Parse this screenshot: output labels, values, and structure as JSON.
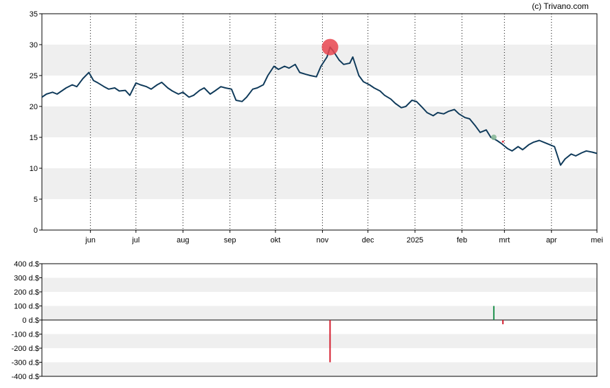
{
  "credit": "(c) Trivano.com",
  "colors": {
    "price_line": "#0f3a5a",
    "band": "#efefef",
    "positive_bar": "#1a8f4a",
    "negative_bar": "#d41c2d",
    "big_marker": "#e8454f",
    "small_marker": "#88b898",
    "tiny_marker": "#d41c2d"
  },
  "chart_data": [
    {
      "type": "line",
      "name": "price",
      "ylim": [
        0,
        35
      ],
      "y_ticks": [
        "0",
        "5",
        "10",
        "15",
        "20",
        "25",
        "30",
        "35"
      ],
      "x_range": [
        "2024-04-30",
        "2025-05-01"
      ],
      "month_ticks": [
        {
          "date": "2024-06-01",
          "label": "jun"
        },
        {
          "date": "2024-07-01",
          "label": "jul"
        },
        {
          "date": "2024-08-01",
          "label": "aug"
        },
        {
          "date": "2024-09-01",
          "label": "sep"
        },
        {
          "date": "2024-10-01",
          "label": "okt"
        },
        {
          "date": "2024-11-01",
          "label": "nov"
        },
        {
          "date": "2024-12-01",
          "label": "dec"
        },
        {
          "date": "2025-01-01",
          "label": "2025"
        },
        {
          "date": "2025-02-01",
          "label": "feb"
        },
        {
          "date": "2025-03-01",
          "label": "mrt"
        },
        {
          "date": "2025-04-01",
          "label": "apr"
        },
        {
          "date": "2025-05-01",
          "label": "mei"
        }
      ],
      "grid": "alternating horizontal bands, dotted vertical month lines",
      "points": [
        [
          "2024-04-30",
          21.5
        ],
        [
          "2024-05-03",
          22.0
        ],
        [
          "2024-05-07",
          22.3
        ],
        [
          "2024-05-10",
          22.0
        ],
        [
          "2024-05-13",
          22.5
        ],
        [
          "2024-05-16",
          23.0
        ],
        [
          "2024-05-20",
          23.5
        ],
        [
          "2024-05-23",
          23.2
        ],
        [
          "2024-05-27",
          24.5
        ],
        [
          "2024-05-31",
          25.5
        ],
        [
          "2024-06-03",
          24.2
        ],
        [
          "2024-06-06",
          23.8
        ],
        [
          "2024-06-10",
          23.2
        ],
        [
          "2024-06-13",
          22.8
        ],
        [
          "2024-06-17",
          23.0
        ],
        [
          "2024-06-20",
          22.5
        ],
        [
          "2024-06-24",
          22.6
        ],
        [
          "2024-06-27",
          21.8
        ],
        [
          "2024-07-01",
          23.8
        ],
        [
          "2024-07-04",
          23.5
        ],
        [
          "2024-07-08",
          23.2
        ],
        [
          "2024-07-11",
          22.8
        ],
        [
          "2024-07-15",
          23.5
        ],
        [
          "2024-07-18",
          23.9
        ],
        [
          "2024-07-22",
          23.0
        ],
        [
          "2024-07-25",
          22.5
        ],
        [
          "2024-07-29",
          22.0
        ],
        [
          "2024-08-01",
          22.3
        ],
        [
          "2024-08-05",
          21.5
        ],
        [
          "2024-08-08",
          21.8
        ],
        [
          "2024-08-12",
          22.6
        ],
        [
          "2024-08-15",
          23.0
        ],
        [
          "2024-08-19",
          22.0
        ],
        [
          "2024-08-22",
          22.5
        ],
        [
          "2024-08-26",
          23.2
        ],
        [
          "2024-08-29",
          23.0
        ],
        [
          "2024-09-02",
          22.8
        ],
        [
          "2024-09-05",
          21.0
        ],
        [
          "2024-09-09",
          20.8
        ],
        [
          "2024-09-12",
          21.5
        ],
        [
          "2024-09-16",
          22.8
        ],
        [
          "2024-09-19",
          23.0
        ],
        [
          "2024-09-23",
          23.5
        ],
        [
          "2024-09-26",
          25.0
        ],
        [
          "2024-09-30",
          26.5
        ],
        [
          "2024-10-03",
          26.0
        ],
        [
          "2024-10-07",
          26.5
        ],
        [
          "2024-10-10",
          26.2
        ],
        [
          "2024-10-14",
          26.8
        ],
        [
          "2024-10-17",
          25.5
        ],
        [
          "2024-10-21",
          25.2
        ],
        [
          "2024-10-24",
          25.0
        ],
        [
          "2024-10-28",
          24.8
        ],
        [
          "2024-10-31",
          26.5
        ],
        [
          "2024-11-04",
          28.0
        ],
        [
          "2024-11-06",
          29.6
        ],
        [
          "2024-11-08",
          29.0
        ],
        [
          "2024-11-12",
          27.5
        ],
        [
          "2024-11-15",
          26.8
        ],
        [
          "2024-11-19",
          27.0
        ],
        [
          "2024-11-21",
          28.0
        ],
        [
          "2024-11-25",
          25.0
        ],
        [
          "2024-11-28",
          24.0
        ],
        [
          "2024-12-02",
          23.5
        ],
        [
          "2024-12-05",
          23.0
        ],
        [
          "2024-12-09",
          22.5
        ],
        [
          "2024-12-12",
          21.8
        ],
        [
          "2024-12-16",
          21.2
        ],
        [
          "2024-12-19",
          20.5
        ],
        [
          "2024-12-23",
          19.8
        ],
        [
          "2024-12-26",
          20.0
        ],
        [
          "2024-12-30",
          21.0
        ],
        [
          "2025-01-02",
          20.8
        ],
        [
          "2025-01-06",
          19.8
        ],
        [
          "2025-01-09",
          19.0
        ],
        [
          "2025-01-13",
          18.5
        ],
        [
          "2025-01-16",
          19.0
        ],
        [
          "2025-01-20",
          18.8
        ],
        [
          "2025-01-23",
          19.2
        ],
        [
          "2025-01-27",
          19.5
        ],
        [
          "2025-01-30",
          18.8
        ],
        [
          "2025-02-03",
          18.2
        ],
        [
          "2025-02-06",
          18.0
        ],
        [
          "2025-02-10",
          16.8
        ],
        [
          "2025-02-13",
          15.8
        ],
        [
          "2025-02-17",
          16.2
        ],
        [
          "2025-02-20",
          15.0
        ],
        [
          "2025-02-24",
          14.5
        ],
        [
          "2025-02-27",
          14.0
        ],
        [
          "2025-03-03",
          13.2
        ],
        [
          "2025-03-06",
          12.8
        ],
        [
          "2025-03-10",
          13.5
        ],
        [
          "2025-03-13",
          13.0
        ],
        [
          "2025-03-17",
          13.8
        ],
        [
          "2025-03-20",
          14.2
        ],
        [
          "2025-03-24",
          14.5
        ],
        [
          "2025-03-27",
          14.2
        ],
        [
          "2025-03-31",
          13.8
        ],
        [
          "2025-04-03",
          13.5
        ],
        [
          "2025-04-07",
          10.5
        ],
        [
          "2025-04-10",
          11.5
        ],
        [
          "2025-04-14",
          12.3
        ],
        [
          "2025-04-17",
          12.0
        ],
        [
          "2025-04-21",
          12.5
        ],
        [
          "2025-04-24",
          12.8
        ],
        [
          "2025-04-28",
          12.6
        ],
        [
          "2025-05-01",
          12.4
        ]
      ],
      "markers": [
        {
          "date": "2024-11-06",
          "value": 29.6,
          "size": "large",
          "color": "#e8454f"
        },
        {
          "date": "2025-02-22",
          "value": 15.0,
          "size": "small",
          "color": "#88b898"
        },
        {
          "date": "2025-02-28",
          "value": 14.3,
          "size": "tiny",
          "color": "#d41c2d"
        }
      ]
    },
    {
      "type": "bar",
      "name": "insider transactions",
      "ylim": [
        -400,
        400
      ],
      "y_ticks": [
        "400 d.$",
        "300 d.$",
        "200 d.$",
        "100 d.$",
        "0 d.$",
        "-100 d.$",
        "-200 d.$",
        "-300 d.$",
        "-400 d.$"
      ],
      "bars": [
        {
          "date": "2024-11-06",
          "value": -300
        },
        {
          "date": "2025-02-22",
          "value": 100
        },
        {
          "date": "2025-02-28",
          "value": -30
        }
      ]
    }
  ]
}
